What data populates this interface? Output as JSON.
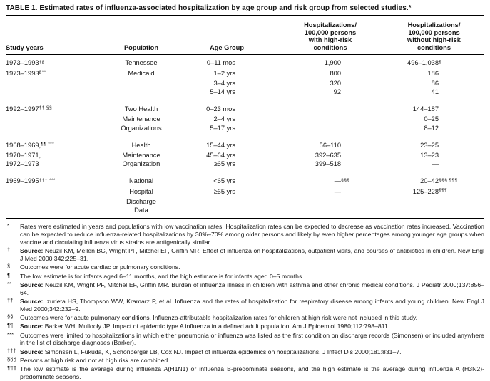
{
  "title": "TABLE 1. Estimated rates of influenza-associated hospitalization by age group and risk group from selected studies.*",
  "table": {
    "columns": [
      "Study years",
      "Population",
      "Age Group",
      "Hospitalizations/\n100,000 persons\nwith high-risk\nconditions",
      "Hospitalizations/\n100,000 persons\nwithout high-risk\nconditions"
    ],
    "groups": [
      {
        "rows": [
          {
            "study": "1973–1993",
            "study_sup": "†§",
            "population": "Tennessee",
            "age": "0–11 mos",
            "high_risk": "1,900",
            "high_risk_sup": "",
            "without_high_risk": "496–1,038",
            "without_high_risk_sup": "¶"
          },
          {
            "study": "1973–1993",
            "study_sup": "§**",
            "population": "Medicaid",
            "age": "1–2 yrs",
            "high_risk": "800",
            "high_risk_sup": "",
            "without_high_risk": "186",
            "without_high_risk_sup": ""
          },
          {
            "study": "",
            "study_sup": "",
            "population": "",
            "age": "3–4 yrs",
            "high_risk": "320",
            "high_risk_sup": "",
            "without_high_risk": "86",
            "without_high_risk_sup": ""
          },
          {
            "study": "",
            "study_sup": "",
            "population": "",
            "age": "5–14 yrs",
            "high_risk": "92",
            "high_risk_sup": "",
            "without_high_risk": "41",
            "without_high_risk_sup": ""
          }
        ]
      },
      {
        "rows": [
          {
            "study": "1992–1997",
            "study_sup": "†† §§",
            "population": "Two Health",
            "age": "0–23 mos",
            "high_risk": "",
            "high_risk_sup": "",
            "without_high_risk": "144–187",
            "without_high_risk_sup": ""
          },
          {
            "study": "",
            "study_sup": "",
            "population": "Maintenance",
            "age": "2–4 yrs",
            "high_risk": "",
            "high_risk_sup": "",
            "without_high_risk": "0–25",
            "without_high_risk_sup": ""
          },
          {
            "study": "",
            "study_sup": "",
            "population": "Organizations",
            "age": "5–17 yrs",
            "high_risk": "",
            "high_risk_sup": "",
            "without_high_risk": "8–12",
            "without_high_risk_sup": ""
          }
        ]
      },
      {
        "rows": [
          {
            "study": "1968–1969,",
            "study_sup": "¶¶ ***",
            "population": "Health",
            "age": "15–44 yrs",
            "high_risk": "56–110",
            "high_risk_sup": "",
            "without_high_risk": "23–25",
            "without_high_risk_sup": ""
          },
          {
            "study": "1970–1971,",
            "study_sup": "",
            "population": "Maintenance",
            "age": "45–64 yrs",
            "high_risk": "392–635",
            "high_risk_sup": "",
            "without_high_risk": "13–23",
            "without_high_risk_sup": ""
          },
          {
            "study": "1972–1973",
            "study_sup": "",
            "population": "Organization",
            "age": "≥65 yrs",
            "high_risk": "399–518",
            "high_risk_sup": "",
            "without_high_risk": "—",
            "without_high_risk_sup": ""
          }
        ]
      },
      {
        "rows": [
          {
            "study": "1969–1995",
            "study_sup": "††† ***",
            "population": "National",
            "age": "<65 yrs",
            "high_risk": "—",
            "high_risk_sup": "§§§",
            "without_high_risk": "20–42",
            "without_high_risk_sup": "§§§ ¶¶¶"
          },
          {
            "study": "",
            "study_sup": "",
            "population": "Hospital",
            "age": "≥65 yrs",
            "high_risk": "—",
            "high_risk_sup": "",
            "without_high_risk": "125–228",
            "without_high_risk_sup": "¶¶¶"
          },
          {
            "study": "",
            "study_sup": "",
            "population": "Discharge",
            "age": "",
            "high_risk": "",
            "high_risk_sup": "",
            "without_high_risk": "",
            "without_high_risk_sup": ""
          },
          {
            "study": "",
            "study_sup": "",
            "population": "Data",
            "age": "",
            "high_risk": "",
            "high_risk_sup": "",
            "without_high_risk": "",
            "without_high_risk_sup": ""
          }
        ]
      }
    ]
  },
  "footnotes": [
    {
      "marker": "*",
      "source_label": "",
      "text": "Rates were estimated in years and populations with low vaccination rates. Hospitalization rates can be expected to decrease as vaccination rates increased. Vaccination can be expected to reduce influenza-related hospitalizations by 30%–70% among older persons and likely by even higher percentages among younger age groups when vaccine and circulating influenza virus strains are antigenically similar."
    },
    {
      "marker": "†",
      "source_label": "Source:",
      "text": "Neuzil KM, Mellen BG, Wright PF, Mitchel EF, Griffin MR. Effect of influenza on hospitalizations, outpatient visits, and courses of antibiotics in children. New Engl J Med 2000;342:225–31."
    },
    {
      "marker": "§",
      "source_label": "",
      "text": "Outcomes were for acute cardiac or pulmonary conditions."
    },
    {
      "marker": "¶",
      "source_label": "",
      "text": "The low estimate is for infants aged 6–11 months, and the high estimate is for infants aged 0–5 months."
    },
    {
      "marker": "**",
      "source_label": "Source:",
      "text": "Neuzil KM, Wright PF, Mitchel EF, Griffin MR. Burden of influenza illness in children with asthma and other chronic medical conditions. J Pediatr 2000;137:856–64."
    },
    {
      "marker": "††",
      "source_label": "Source:",
      "text": "Izurieta HS, Thompson WW, Kramarz P, et al. Influenza and the rates of hospitalization for respiratory disease among infants and young children. New Engl J Med 2000;342:232–9."
    },
    {
      "marker": "§§",
      "source_label": "",
      "text": "Outcomes were for acute pulmonary conditions. Influenza-attributable hospitalization rates for children at high risk were not included in this study."
    },
    {
      "marker": "¶¶",
      "source_label": "Source:",
      "text": "Barker WH, Mullooly JP. Impact of epidemic type A influenza in a defined adult population. Am J Epidemiol 1980;112:798–811."
    },
    {
      "marker": "***",
      "source_label": "",
      "text": "Outcomes were limited to hospitalizations in which either pneumonia or influenza was listed as the first condition on discharge records (Simonsen) or included anywhere in the list of discharge diagnoses (Barker)."
    },
    {
      "marker": "†††",
      "source_label": "Source:",
      "text": "Simonsen L, Fukuda, K, Schonberger LB, Cox NJ. Impact of influenza epidemics on hospitalizations. J Infect Dis 2000;181:831–7."
    },
    {
      "marker": "§§§",
      "source_label": "",
      "text": "Persons at high risk and not at high risk are combined."
    },
    {
      "marker": "¶¶¶",
      "source_label": "",
      "text": "The low estimate is the average during influenza A(H1N1) or influenza B-predominate seasons, and the high estimate is the average during influenza A (H3N2)-predominate seasons."
    }
  ]
}
